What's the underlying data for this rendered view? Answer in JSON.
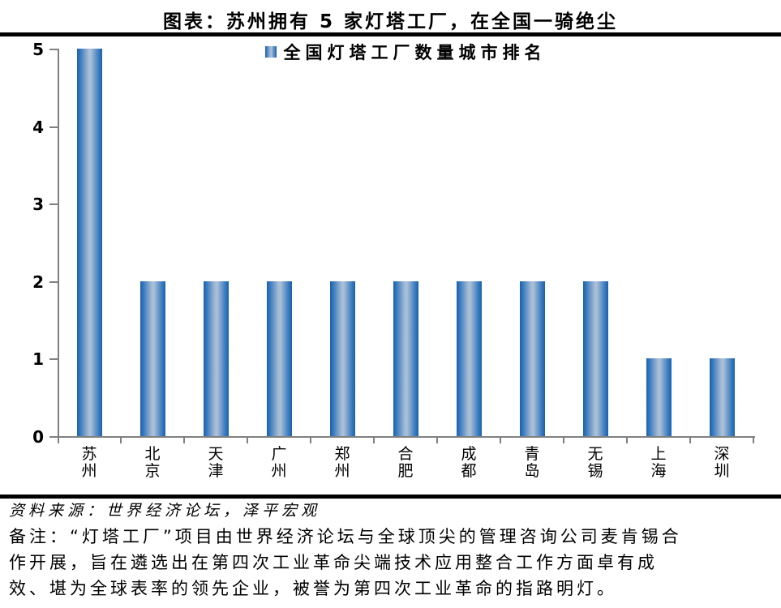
{
  "header": {
    "title": "图表：苏州拥有 5 家灯塔工厂，在全国一骑绝尘"
  },
  "chart_data": {
    "type": "bar",
    "title": "全国灯塔工厂数量城市排名",
    "legend": "全国灯塔工厂数量城市排名",
    "legend_position": "top-center",
    "categories": [
      "苏州",
      "北京",
      "天津",
      "广州",
      "郑州",
      "合肥",
      "成都",
      "青岛",
      "无锡",
      "上海",
      "深圳"
    ],
    "values": [
      5,
      2,
      2,
      2,
      2,
      2,
      2,
      2,
      2,
      1,
      1
    ],
    "xlabel": "",
    "ylabel": "",
    "ylim": [
      0,
      5
    ],
    "yticks": [
      0,
      1,
      2,
      3,
      4,
      5
    ],
    "grid": false,
    "x_tick_label_orientation": "vertical",
    "colors": {
      "bar_edge": "#1b61ad",
      "bar_mid": "#3578bd",
      "bar_center": "#abc0d7",
      "axis": "#808080",
      "text": "#000000",
      "divider": "#000000"
    }
  },
  "footer": {
    "source": "资料来源：世界经济论坛，泽平宏观",
    "note_lines": [
      "备注：“灯塔工厂”项目由世界经济论坛与全球顶尖的管理咨询公司麦肯锡合",
      "作开展，旨在遴选出在第四次工业革命尖端技术应用整合工作方面卓有成",
      "效、堪为全球表率的领先企业，被誉为第四次工业革命的指路明灯。"
    ]
  }
}
